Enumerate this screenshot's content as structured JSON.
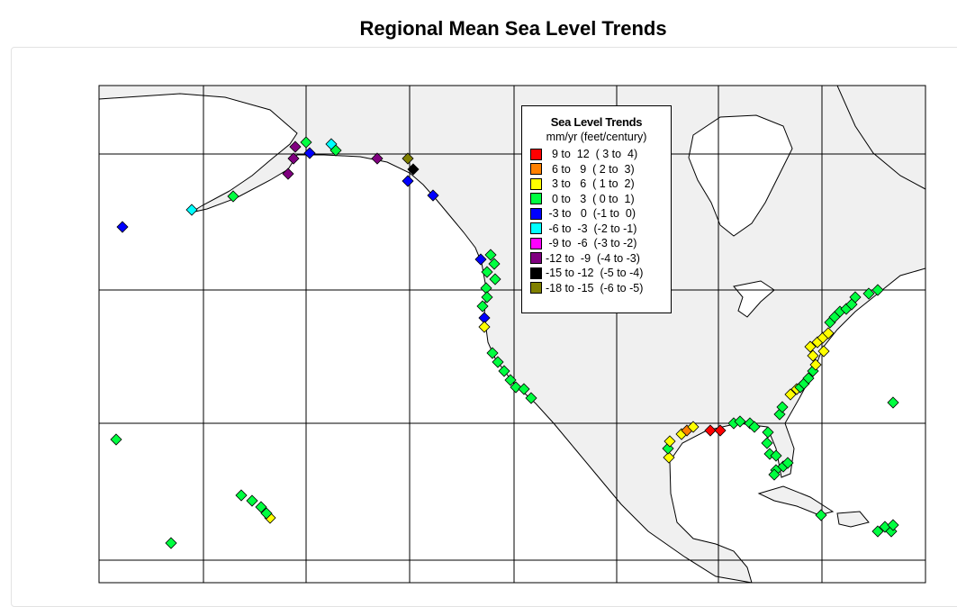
{
  "title": "Regional Mean Sea Level Trends",
  "legend": {
    "title": "Sea Level Trends",
    "units": "mm/yr (feet/century)",
    "items": [
      {
        "label": "  9 to  12  ( 3 to  4)",
        "color": "#ff0000"
      },
      {
        "label": "  6 to   9  ( 2 to  3)",
        "color": "#ff8000"
      },
      {
        "label": "  3 to   6  ( 1 to  2)",
        "color": "#ffff00"
      },
      {
        "label": "  0 to   3  ( 0 to  1)",
        "color": "#00ff40"
      },
      {
        "label": " -3 to   0  (-1 to  0)",
        "color": "#0000ff"
      },
      {
        "label": " -6 to  -3  (-2 to -1)",
        "color": "#00ffff"
      },
      {
        "label": " -9 to  -6  (-3 to -2)",
        "color": "#ff00ff"
      },
      {
        "label": "-12 to  -9  (-4 to -3)",
        "color": "#800080"
      },
      {
        "label": "-15 to -12  (-5 to -4)",
        "color": "#000000"
      },
      {
        "label": "-18 to -15  (-6 to -5)",
        "color": "#808000"
      }
    ]
  },
  "colors": {
    "land": "#f0f0f0",
    "water": "#ffffff",
    "grid": "#000000"
  }
}
